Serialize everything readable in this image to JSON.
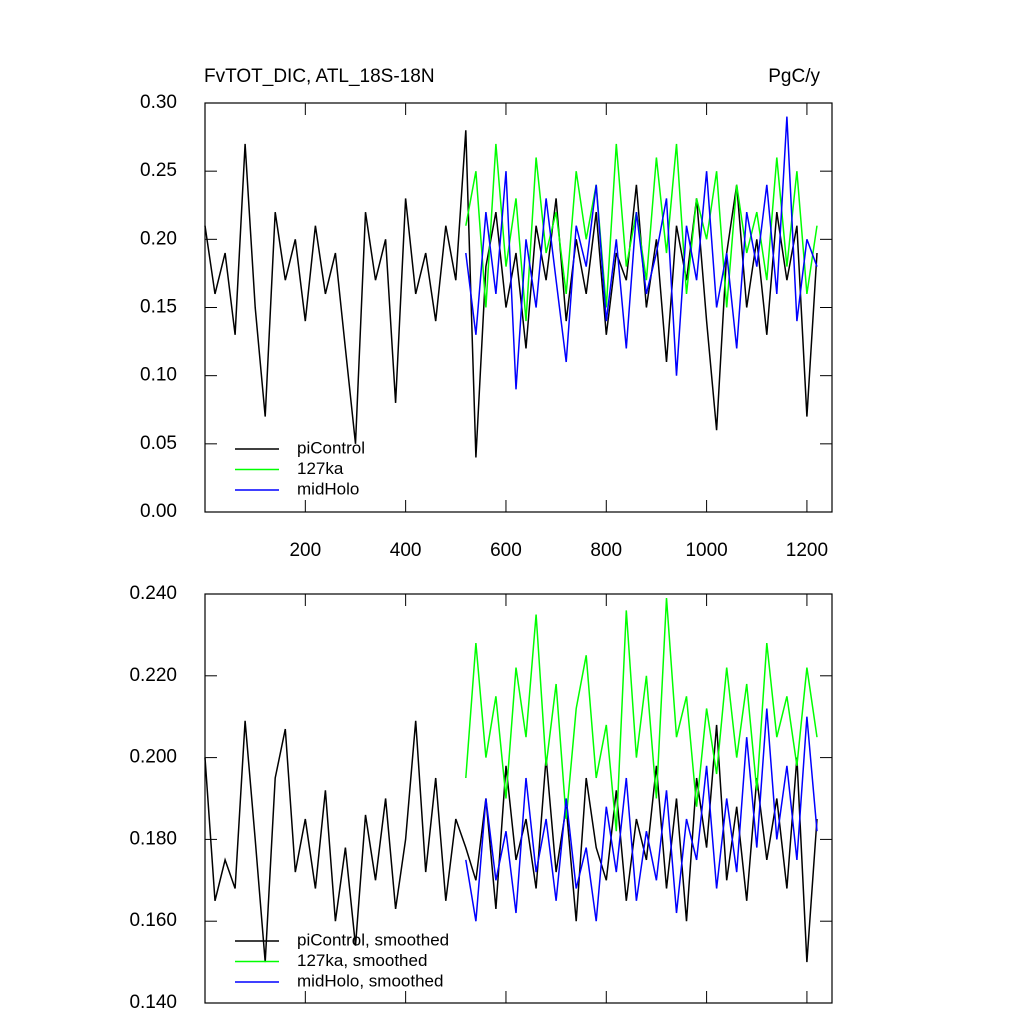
{
  "chart_data": [
    {
      "type": "line",
      "title": "FvTOT_DIC, ATL_18S-18N",
      "units": "PgC/y",
      "x": [
        0,
        20,
        40,
        60,
        80,
        100,
        120,
        140,
        160,
        180,
        200,
        220,
        240,
        260,
        280,
        300,
        320,
        340,
        360,
        380,
        400,
        420,
        440,
        460,
        480,
        500,
        520,
        540,
        560,
        580,
        600,
        620,
        640,
        660,
        680,
        700,
        720,
        740,
        760,
        780,
        800,
        820,
        840,
        860,
        880,
        900,
        920,
        940,
        960,
        980,
        1000,
        1020,
        1040,
        1060,
        1080,
        1100,
        1120,
        1140,
        1160,
        1180,
        1200,
        1220
      ],
      "series": [
        {
          "name": "piControl",
          "color": "#000000",
          "values": [
            0.21,
            0.16,
            0.19,
            0.13,
            0.27,
            0.15,
            0.07,
            0.22,
            0.17,
            0.2,
            0.14,
            0.21,
            0.16,
            0.19,
            0.12,
            0.05,
            0.22,
            0.17,
            0.2,
            0.08,
            0.23,
            0.16,
            0.19,
            0.14,
            0.21,
            0.17,
            0.28,
            0.04,
            0.18,
            0.22,
            0.15,
            0.19,
            0.12,
            0.21,
            0.17,
            0.23,
            0.14,
            0.2,
            0.16,
            0.22,
            0.13,
            0.19,
            0.17,
            0.24,
            0.15,
            0.2,
            0.11,
            0.21,
            0.17,
            0.23,
            0.14,
            0.06,
            0.19,
            0.24,
            0.15,
            0.2,
            0.13,
            0.22,
            0.17,
            0.21,
            0.07,
            0.19
          ]
        },
        {
          "name": "127ka",
          "color": "#00ff00",
          "values": [
            null,
            null,
            null,
            null,
            null,
            null,
            null,
            null,
            null,
            null,
            null,
            null,
            null,
            null,
            null,
            null,
            null,
            null,
            null,
            null,
            null,
            null,
            null,
            null,
            null,
            null,
            0.21,
            0.25,
            0.15,
            0.27,
            0.18,
            0.23,
            0.14,
            0.26,
            0.19,
            0.22,
            0.16,
            0.25,
            0.2,
            0.24,
            0.15,
            0.27,
            0.18,
            0.22,
            0.17,
            0.26,
            0.19,
            0.27,
            0.16,
            0.23,
            0.2,
            0.25,
            0.15,
            0.24,
            0.19,
            0.22,
            0.17,
            0.26,
            0.18,
            0.25,
            0.16,
            0.21
          ]
        },
        {
          "name": "midHolo",
          "color": "#0000ff",
          "values": [
            null,
            null,
            null,
            null,
            null,
            null,
            null,
            null,
            null,
            null,
            null,
            null,
            null,
            null,
            null,
            null,
            null,
            null,
            null,
            null,
            null,
            null,
            null,
            null,
            null,
            null,
            0.19,
            0.13,
            0.22,
            0.16,
            0.25,
            0.09,
            0.2,
            0.15,
            0.23,
            0.17,
            0.11,
            0.21,
            0.18,
            0.24,
            0.14,
            0.2,
            0.12,
            0.22,
            0.16,
            0.19,
            0.23,
            0.1,
            0.21,
            0.17,
            0.25,
            0.15,
            0.19,
            0.12,
            0.22,
            0.18,
            0.24,
            0.16,
            0.29,
            0.14,
            0.2,
            0.18
          ]
        }
      ],
      "xlim": [
        0,
        1250
      ],
      "xticks": [
        200,
        400,
        600,
        800,
        1000,
        1200
      ],
      "ylim": [
        0,
        0.3
      ],
      "yticks": [
        {
          "value": 0,
          "label": "0.00"
        },
        {
          "value": 0.05,
          "label": "0.05"
        },
        {
          "value": 0.1,
          "label": "0.10"
        },
        {
          "value": 0.15,
          "label": "0.15"
        },
        {
          "value": 0.2,
          "label": "0.20"
        },
        {
          "value": 0.25,
          "label": "0.25"
        },
        {
          "value": 0.3,
          "label": "0.30"
        }
      ]
    },
    {
      "type": "line",
      "x": [
        0,
        20,
        40,
        60,
        80,
        100,
        120,
        140,
        160,
        180,
        200,
        220,
        240,
        260,
        280,
        300,
        320,
        340,
        360,
        380,
        400,
        420,
        440,
        460,
        480,
        500,
        520,
        540,
        560,
        580,
        600,
        620,
        640,
        660,
        680,
        700,
        720,
        740,
        760,
        780,
        800,
        820,
        840,
        860,
        880,
        900,
        920,
        940,
        960,
        980,
        1000,
        1020,
        1040,
        1060,
        1080,
        1100,
        1120,
        1140,
        1160,
        1180,
        1200,
        1220
      ],
      "series": [
        {
          "name": "piControl, smoothed",
          "color": "#000000",
          "values": [
            0.2,
            0.165,
            0.175,
            0.168,
            0.209,
            0.18,
            0.15,
            0.195,
            0.207,
            0.172,
            0.185,
            0.168,
            0.192,
            0.16,
            0.178,
            0.154,
            0.186,
            0.17,
            0.19,
            0.163,
            0.18,
            0.209,
            0.172,
            0.195,
            0.165,
            0.185,
            0.178,
            0.17,
            0.19,
            0.163,
            0.198,
            0.175,
            0.185,
            0.168,
            0.2,
            0.172,
            0.188,
            0.16,
            0.195,
            0.178,
            0.17,
            0.192,
            0.165,
            0.185,
            0.175,
            0.198,
            0.168,
            0.19,
            0.16,
            0.195,
            0.178,
            0.208,
            0.17,
            0.188,
            0.165,
            0.195,
            0.175,
            0.19,
            0.168,
            0.2,
            0.15,
            0.185
          ]
        },
        {
          "name": "127ka, smoothed",
          "color": "#00ff00",
          "values": [
            null,
            null,
            null,
            null,
            null,
            null,
            null,
            null,
            null,
            null,
            null,
            null,
            null,
            null,
            null,
            null,
            null,
            null,
            null,
            null,
            null,
            null,
            null,
            null,
            null,
            null,
            0.195,
            0.228,
            0.2,
            0.215,
            0.19,
            0.222,
            0.205,
            0.235,
            0.198,
            0.218,
            0.185,
            0.212,
            0.225,
            0.195,
            0.208,
            0.182,
            0.236,
            0.2,
            0.22,
            0.19,
            0.239,
            0.205,
            0.215,
            0.188,
            0.212,
            0.196,
            0.222,
            0.2,
            0.218,
            0.192,
            0.228,
            0.205,
            0.215,
            0.198,
            0.222,
            0.205
          ]
        },
        {
          "name": "midHolo, smoothed",
          "color": "#0000ff",
          "values": [
            null,
            null,
            null,
            null,
            null,
            null,
            null,
            null,
            null,
            null,
            null,
            null,
            null,
            null,
            null,
            null,
            null,
            null,
            null,
            null,
            null,
            null,
            null,
            null,
            null,
            null,
            0.175,
            0.16,
            0.19,
            0.17,
            0.182,
            0.162,
            0.195,
            0.172,
            0.185,
            0.165,
            0.19,
            0.168,
            0.178,
            0.16,
            0.188,
            0.172,
            0.195,
            0.165,
            0.182,
            0.17,
            0.192,
            0.162,
            0.185,
            0.175,
            0.198,
            0.168,
            0.19,
            0.172,
            0.205,
            0.178,
            0.212,
            0.18,
            0.198,
            0.175,
            0.21,
            0.182
          ]
        }
      ],
      "xlim": [
        0,
        1250
      ],
      "xticks": [
        200,
        400,
        600,
        800,
        1000,
        1200
      ],
      "ylim": [
        0.14,
        0.24
      ],
      "yticks": [
        {
          "value": 0.14,
          "label": "0.140"
        },
        {
          "value": 0.16,
          "label": "0.160"
        },
        {
          "value": 0.18,
          "label": "0.180"
        },
        {
          "value": 0.2,
          "label": "0.200"
        },
        {
          "value": 0.22,
          "label": "0.220"
        },
        {
          "value": 0.24,
          "label": "0.240"
        }
      ]
    }
  ]
}
